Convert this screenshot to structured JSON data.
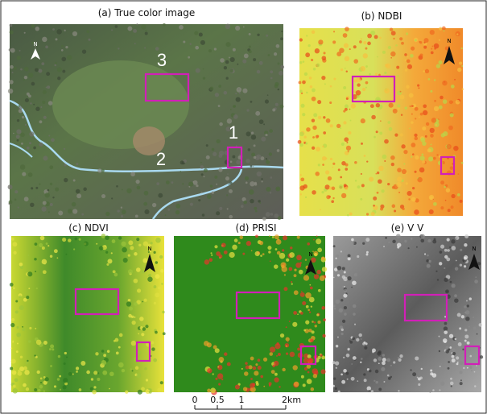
{
  "panels": [
    {
      "title": "(a) True color image"
    },
    {
      "title": "(b) NDBI"
    },
    {
      "title": "(c) NDVI"
    },
    {
      "title": "(d) PRISI"
    },
    {
      "title": "(e) V V"
    }
  ],
  "site_labels": [
    "3",
    "1",
    "2"
  ],
  "north_label": "N",
  "scale_bar": [
    "0",
    "0.5",
    "1",
    "2km"
  ]
}
